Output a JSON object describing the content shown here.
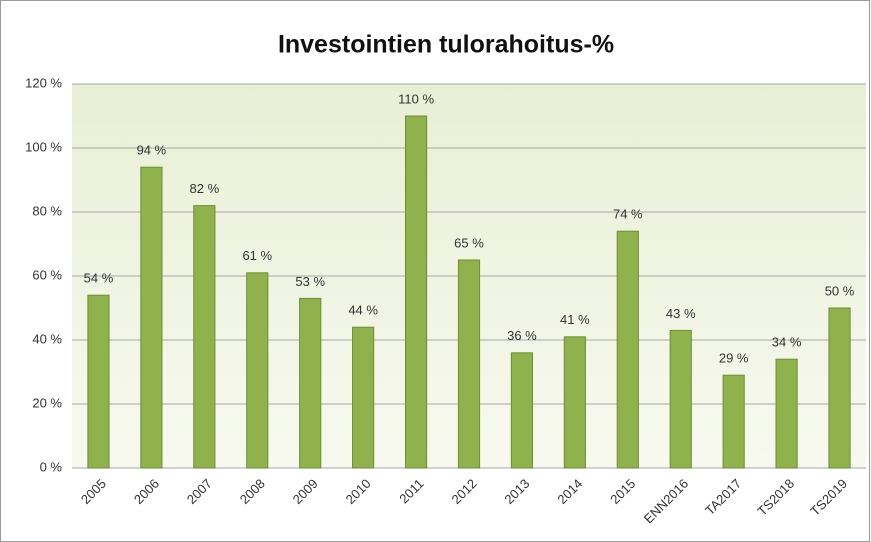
{
  "chart_data": {
    "type": "bar",
    "title": "Investointien tulorahoitus-%",
    "categories": [
      "2005",
      "2006",
      "2007",
      "2008",
      "2009",
      "2010",
      "2011",
      "2012",
      "2013",
      "2014",
      "2015",
      "ENN2016",
      "TA2017",
      "TS2018",
      "TS2019"
    ],
    "values": [
      54,
      94,
      82,
      61,
      53,
      44,
      110,
      65,
      36,
      41,
      74,
      43,
      29,
      34,
      50
    ],
    "value_labels": [
      "54 %",
      "94 %",
      "82 %",
      "61 %",
      "53 %",
      "44 %",
      "110 %",
      "65 %",
      "36 %",
      "41 %",
      "74 %",
      "43 %",
      "29 %",
      "34 %",
      "50 %"
    ],
    "color": "#8fb24c",
    "ylim": [
      0,
      120
    ],
    "yticks": [
      {
        "value": 0,
        "label": "0 %"
      },
      {
        "value": 20,
        "label": "20 %"
      },
      {
        "value": 40,
        "label": "40 %"
      },
      {
        "value": 60,
        "label": "60 %"
      },
      {
        "value": 80,
        "label": "80 %"
      },
      {
        "value": 100,
        "label": "100 %"
      },
      {
        "value": 120,
        "label": "120 %"
      }
    ],
    "grid": true
  }
}
